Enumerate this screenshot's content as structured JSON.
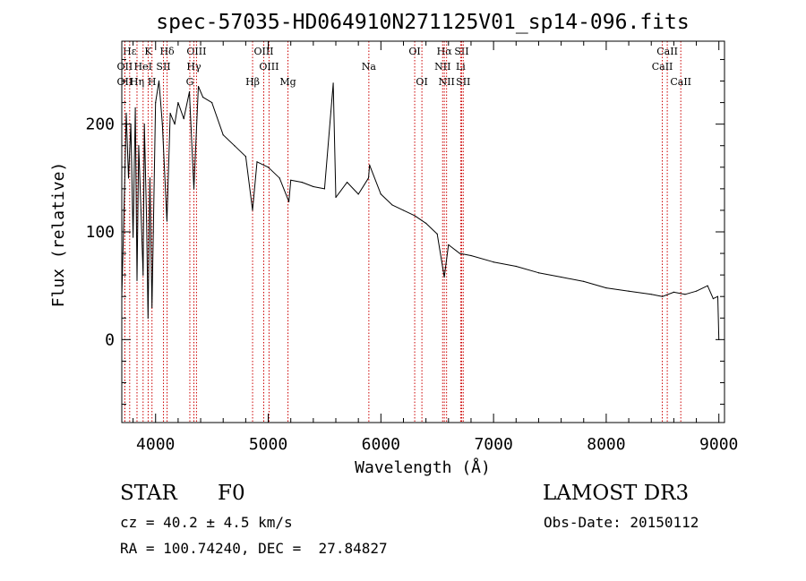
{
  "chart_data": {
    "type": "line",
    "title": "spec-57035-HD064910N271125V01_sp14-096.fits",
    "xlabel": "Wavelength (Å)",
    "ylabel": "Flux (relative)",
    "xlim": [
      3700,
      9050
    ],
    "ylim": [
      -77,
      277
    ],
    "x_ticks": [
      4000,
      5000,
      6000,
      7000,
      8000,
      9000
    ],
    "y_ticks": [
      0,
      100,
      200
    ],
    "grid": false,
    "line_color": "#000000",
    "marker_color": "#cc0000",
    "series": [
      {
        "name": "flux",
        "x": [
          3700,
          3720,
          3740,
          3760,
          3780,
          3800,
          3820,
          3835,
          3850,
          3870,
          3889,
          3900,
          3920,
          3933,
          3950,
          3968,
          3980,
          4000,
          4030,
          4060,
          4101,
          4130,
          4170,
          4200,
          4250,
          4300,
          4340,
          4380,
          4420,
          4500,
          4600,
          4700,
          4800,
          4861,
          4900,
          5000,
          5100,
          5183,
          5200,
          5300,
          5400,
          5500,
          5577,
          5600,
          5700,
          5800,
          5890,
          5900,
          6000,
          6100,
          6200,
          6300,
          6400,
          6500,
          6563,
          6600,
          6700,
          6800,
          7000,
          7200,
          7400,
          7600,
          7800,
          8000,
          8200,
          8400,
          8500,
          8600,
          8700,
          8800,
          8900,
          8950,
          8990,
          9000
        ],
        "y": [
          40,
          120,
          210,
          150,
          200,
          95,
          215,
          55,
          180,
          120,
          60,
          200,
          110,
          20,
          150,
          30,
          100,
          220,
          240,
          200,
          110,
          210,
          200,
          220,
          205,
          230,
          140,
          235,
          225,
          220,
          190,
          180,
          170,
          120,
          165,
          160,
          150,
          128,
          148,
          146,
          142,
          140,
          238,
          132,
          146,
          135,
          150,
          162,
          135,
          125,
          120,
          115,
          108,
          98,
          58,
          88,
          80,
          78,
          72,
          68,
          62,
          58,
          54,
          48,
          45,
          42,
          40,
          44,
          42,
          45,
          50,
          38,
          40,
          0
        ]
      }
    ],
    "line_markers": [
      {
        "label": "Hε",
        "x": 3770,
        "row": 1
      },
      {
        "label": "K",
        "x": 3934,
        "row": 1
      },
      {
        "label": "Hδ",
        "x": 4102,
        "row": 1
      },
      {
        "label": "OIII",
        "x": 4363,
        "row": 1
      },
      {
        "label": "OIII",
        "x": 4960,
        "row": 1
      },
      {
        "label": "OI",
        "x": 6300,
        "row": 1
      },
      {
        "label": "Hα",
        "x": 6563,
        "row": 1
      },
      {
        "label": "SII",
        "x": 6717,
        "row": 1
      },
      {
        "label": "CaII",
        "x": 8542,
        "row": 1
      },
      {
        "label": "OII",
        "x": 3727,
        "row": 2
      },
      {
        "label": "HeI",
        "x": 3889,
        "row": 2
      },
      {
        "label": "SII",
        "x": 4070,
        "row": 2
      },
      {
        "label": "Hγ",
        "x": 4340,
        "row": 2
      },
      {
        "label": "OIII",
        "x": 5007,
        "row": 2
      },
      {
        "label": "Na",
        "x": 5893,
        "row": 2
      },
      {
        "label": "NII",
        "x": 6548,
        "row": 2
      },
      {
        "label": "Li",
        "x": 6708,
        "row": 2
      },
      {
        "label": "CaII",
        "x": 8498,
        "row": 2
      },
      {
        "label": "OII",
        "x": 3727,
        "row": 3
      },
      {
        "label": "Hη",
        "x": 3835,
        "row": 3
      },
      {
        "label": "H",
        "x": 3968,
        "row": 3
      },
      {
        "label": "G",
        "x": 4304,
        "row": 3
      },
      {
        "label": "Hβ",
        "x": 4861,
        "row": 3
      },
      {
        "label": "Mg",
        "x": 5175,
        "row": 3
      },
      {
        "label": "OI",
        "x": 6364,
        "row": 3
      },
      {
        "label": "NII",
        "x": 6583,
        "row": 3
      },
      {
        "label": "SII",
        "x": 6731,
        "row": 3
      },
      {
        "label": "CaII",
        "x": 8662,
        "row": 3
      }
    ]
  },
  "info": {
    "object_type": "STAR",
    "subclass": "F0",
    "survey": "LAMOST DR3",
    "redshift_line": "cz = 40.2 ± 4.5 km/s",
    "obs_date_line": "Obs-Date: 20150112",
    "coords_line": "RA = 100.74240, DEC =  27.84827"
  }
}
